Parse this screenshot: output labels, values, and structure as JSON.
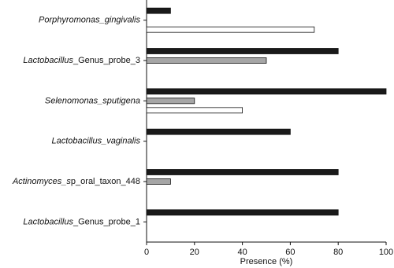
{
  "chart_data": {
    "type": "bar",
    "orientation": "horizontal",
    "x_label": "Presence (%)",
    "categories": [
      [
        "Porphyromonas_gingivalis"
      ],
      [
        "Lactobacillus",
        "_Genus_probe_3"
      ],
      [
        "Selenomonas_sputigena"
      ],
      [
        "Lactobacillus_vaginalis"
      ],
      [
        "Actinomyces_s",
        "p_oral_taxon_448"
      ],
      [
        "Lactobacillus",
        "_Genus_probe_1"
      ]
    ],
    "series": [
      {
        "color": "#1a1a1a",
        "values": [
          10,
          80,
          100,
          60,
          80,
          80
        ]
      },
      {
        "color": "#a6a6a6",
        "values": [
          0,
          50,
          20,
          0,
          10,
          0
        ]
      },
      {
        "color": "#ffffff",
        "values": [
          70,
          0,
          40,
          0,
          0,
          0
        ]
      }
    ],
    "xlim": [
      0,
      100
    ],
    "xticks": [
      0,
      20,
      40,
      60,
      80,
      100
    ]
  }
}
